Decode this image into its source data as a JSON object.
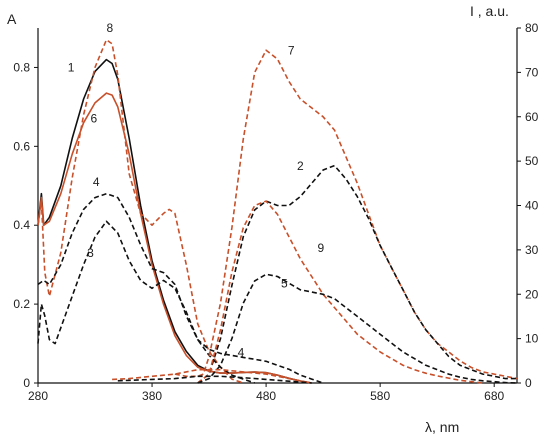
{
  "chart_data": {
    "type": "line",
    "xlabel": "λ, nm",
    "ylabel_left": "A",
    "ylabel_right": "I , a.u.",
    "xlim": [
      280,
      700
    ],
    "ylim_left": [
      0,
      0.9
    ],
    "ylim_right": [
      0,
      80
    ],
    "x_ticks": [
      280,
      380,
      480,
      580,
      680
    ],
    "y_ticks_left": [
      0,
      0.2,
      0.4,
      0.6,
      0.8
    ],
    "y_ticks_right": [
      0,
      10,
      20,
      30,
      40,
      50,
      60,
      70,
      80
    ],
    "grid": false,
    "legend": "none",
    "colors": {
      "black": "#111111",
      "red": "#c8502a"
    },
    "series": [
      {
        "label": "1",
        "axis": "left",
        "color": "black",
        "dash": "solid",
        "points": [
          [
            280,
            0.4
          ],
          [
            283,
            0.48
          ],
          [
            285,
            0.4
          ],
          [
            290,
            0.42
          ],
          [
            300,
            0.5
          ],
          [
            310,
            0.62
          ],
          [
            320,
            0.72
          ],
          [
            330,
            0.79
          ],
          [
            340,
            0.82
          ],
          [
            345,
            0.81
          ],
          [
            350,
            0.77
          ],
          [
            360,
            0.62
          ],
          [
            370,
            0.45
          ],
          [
            380,
            0.31
          ],
          [
            390,
            0.21
          ],
          [
            400,
            0.13
          ],
          [
            410,
            0.08
          ],
          [
            420,
            0.045
          ],
          [
            430,
            0.03
          ],
          [
            440,
            0.025
          ],
          [
            450,
            0.025
          ],
          [
            460,
            0.027
          ],
          [
            470,
            0.028
          ],
          [
            480,
            0.026
          ],
          [
            490,
            0.02
          ],
          [
            500,
            0.012
          ],
          [
            510,
            0.005
          ],
          [
            520,
            0.0
          ]
        ]
      },
      {
        "label": "6",
        "axis": "left",
        "color": "red",
        "dash": "solid",
        "points": [
          [
            280,
            0.4
          ],
          [
            283,
            0.47
          ],
          [
            285,
            0.4
          ],
          [
            290,
            0.41
          ],
          [
            300,
            0.48
          ],
          [
            310,
            0.58
          ],
          [
            320,
            0.66
          ],
          [
            330,
            0.71
          ],
          [
            340,
            0.735
          ],
          [
            345,
            0.73
          ],
          [
            350,
            0.7
          ],
          [
            360,
            0.58
          ],
          [
            370,
            0.43
          ],
          [
            380,
            0.3
          ],
          [
            390,
            0.2
          ],
          [
            400,
            0.12
          ],
          [
            410,
            0.07
          ],
          [
            420,
            0.04
          ],
          [
            430,
            0.03
          ],
          [
            440,
            0.025
          ],
          [
            450,
            0.025
          ],
          [
            460,
            0.027
          ],
          [
            470,
            0.028
          ],
          [
            480,
            0.026
          ],
          [
            490,
            0.02
          ],
          [
            500,
            0.012
          ],
          [
            510,
            0.005
          ],
          [
            520,
            0.0
          ]
        ]
      },
      {
        "label": "8",
        "axis": "left",
        "color": "red",
        "dash": "dashed",
        "points": [
          [
            280,
            0.4
          ],
          [
            283,
            0.46
          ],
          [
            286,
            0.28
          ],
          [
            290,
            0.22
          ],
          [
            300,
            0.33
          ],
          [
            310,
            0.52
          ],
          [
            320,
            0.68
          ],
          [
            330,
            0.8
          ],
          [
            340,
            0.87
          ],
          [
            345,
            0.86
          ],
          [
            350,
            0.78
          ],
          [
            360,
            0.53
          ],
          [
            370,
            0.43
          ],
          [
            380,
            0.4
          ],
          [
            390,
            0.43
          ],
          [
            395,
            0.44
          ],
          [
            400,
            0.43
          ],
          [
            410,
            0.3
          ],
          [
            420,
            0.15
          ],
          [
            430,
            0.08
          ],
          [
            440,
            0.04
          ],
          [
            450,
            0.01
          ],
          [
            460,
            0.0
          ]
        ]
      },
      {
        "label": "4",
        "axis": "left",
        "color": "black",
        "dash": "dashed",
        "points": [
          [
            280,
            0.25
          ],
          [
            285,
            0.26
          ],
          [
            290,
            0.25
          ],
          [
            300,
            0.3
          ],
          [
            310,
            0.38
          ],
          [
            320,
            0.44
          ],
          [
            330,
            0.47
          ],
          [
            340,
            0.48
          ],
          [
            350,
            0.47
          ],
          [
            360,
            0.42
          ],
          [
            370,
            0.35
          ],
          [
            380,
            0.29
          ],
          [
            390,
            0.28
          ],
          [
            400,
            0.25
          ],
          [
            410,
            0.17
          ],
          [
            420,
            0.11
          ],
          [
            430,
            0.085
          ],
          [
            440,
            0.075
          ],
          [
            450,
            0.07
          ],
          [
            460,
            0.065
          ],
          [
            470,
            0.06
          ],
          [
            480,
            0.055
          ],
          [
            490,
            0.045
          ],
          [
            500,
            0.035
          ],
          [
            510,
            0.02
          ],
          [
            520,
            0.01
          ],
          [
            530,
            0.0
          ]
        ]
      },
      {
        "label": "3",
        "axis": "left",
        "color": "black",
        "dash": "dashed",
        "points": [
          [
            280,
            0.1
          ],
          [
            283,
            0.2
          ],
          [
            286,
            0.17
          ],
          [
            290,
            0.11
          ],
          [
            295,
            0.1
          ],
          [
            300,
            0.14
          ],
          [
            310,
            0.22
          ],
          [
            320,
            0.3
          ],
          [
            330,
            0.37
          ],
          [
            340,
            0.41
          ],
          [
            350,
            0.38
          ],
          [
            360,
            0.31
          ],
          [
            370,
            0.26
          ],
          [
            380,
            0.24
          ],
          [
            390,
            0.26
          ],
          [
            400,
            0.24
          ],
          [
            410,
            0.18
          ],
          [
            420,
            0.11
          ],
          [
            430,
            0.07
          ],
          [
            440,
            0.04
          ],
          [
            450,
            0.02
          ],
          [
            460,
            0.01
          ],
          [
            470,
            0.0
          ]
        ]
      },
      {
        "label": "7",
        "axis": "right",
        "color": "red",
        "dash": "dashed",
        "points": [
          [
            400,
            2
          ],
          [
            410,
            1.5
          ],
          [
            420,
            1.5
          ],
          [
            425,
            2
          ],
          [
            430,
            6
          ],
          [
            440,
            18
          ],
          [
            450,
            35
          ],
          [
            460,
            55
          ],
          [
            470,
            70
          ],
          [
            480,
            75
          ],
          [
            490,
            73
          ],
          [
            500,
            68
          ],
          [
            510,
            64
          ],
          [
            520,
            62
          ],
          [
            530,
            60
          ],
          [
            540,
            57
          ],
          [
            550,
            51
          ],
          [
            560,
            45
          ],
          [
            570,
            38
          ],
          [
            580,
            31
          ],
          [
            590,
            26
          ],
          [
            600,
            21
          ],
          [
            610,
            16
          ],
          [
            620,
            12
          ],
          [
            630,
            9
          ],
          [
            640,
            7
          ],
          [
            650,
            5
          ],
          [
            660,
            3.5
          ],
          [
            670,
            2.5
          ],
          [
            680,
            2
          ],
          [
            690,
            1.5
          ],
          [
            700,
            1
          ]
        ]
      },
      {
        "label": "2",
        "axis": "right",
        "color": "black",
        "dash": "dashed",
        "points": [
          [
            420,
            0
          ],
          [
            430,
            2
          ],
          [
            440,
            10
          ],
          [
            450,
            22
          ],
          [
            460,
            33
          ],
          [
            470,
            39
          ],
          [
            480,
            41
          ],
          [
            490,
            40
          ],
          [
            500,
            40
          ],
          [
            510,
            42
          ],
          [
            520,
            45
          ],
          [
            530,
            48
          ],
          [
            540,
            49
          ],
          [
            550,
            46
          ],
          [
            560,
            42
          ],
          [
            570,
            37
          ],
          [
            580,
            31
          ],
          [
            590,
            26
          ],
          [
            600,
            21
          ],
          [
            610,
            16
          ],
          [
            620,
            12
          ],
          [
            630,
            9
          ],
          [
            640,
            6
          ],
          [
            650,
            4
          ],
          [
            660,
            3
          ],
          [
            670,
            2
          ],
          [
            680,
            1.5
          ],
          [
            690,
            1
          ],
          [
            700,
            1
          ]
        ]
      },
      {
        "label": "9",
        "axis": "right",
        "color": "red",
        "dash": "dashed",
        "points": [
          [
            420,
            0
          ],
          [
            430,
            2
          ],
          [
            440,
            12
          ],
          [
            450,
            25
          ],
          [
            460,
            35
          ],
          [
            470,
            40
          ],
          [
            480,
            41
          ],
          [
            490,
            38
          ],
          [
            500,
            33
          ],
          [
            510,
            28
          ],
          [
            520,
            24
          ],
          [
            530,
            20
          ],
          [
            540,
            17
          ],
          [
            550,
            14
          ],
          [
            560,
            11
          ],
          [
            570,
            9
          ],
          [
            580,
            7
          ],
          [
            590,
            5.5
          ],
          [
            600,
            4
          ],
          [
            610,
            3
          ],
          [
            620,
            2.2
          ],
          [
            630,
            1.6
          ],
          [
            640,
            1.1
          ],
          [
            650,
            0.6
          ],
          [
            660,
            0.3
          ],
          [
            670,
            0
          ]
        ]
      },
      {
        "label": "5",
        "axis": "right",
        "color": "black",
        "dash": "dashed",
        "points": [
          [
            420,
            0
          ],
          [
            430,
            1
          ],
          [
            440,
            4
          ],
          [
            450,
            10
          ],
          [
            460,
            18
          ],
          [
            470,
            23
          ],
          [
            480,
            24.5
          ],
          [
            490,
            24
          ],
          [
            500,
            22.5
          ],
          [
            510,
            21
          ],
          [
            520,
            20.5
          ],
          [
            530,
            20
          ],
          [
            540,
            19
          ],
          [
            550,
            17
          ],
          [
            560,
            15
          ],
          [
            570,
            13
          ],
          [
            580,
            11
          ],
          [
            590,
            9
          ],
          [
            600,
            7
          ],
          [
            610,
            5.5
          ],
          [
            620,
            4
          ],
          [
            630,
            3
          ],
          [
            640,
            2
          ],
          [
            650,
            1.3
          ],
          [
            660,
            0.8
          ],
          [
            670,
            0.5
          ],
          [
            680,
            0.3
          ],
          [
            690,
            0.1
          ],
          [
            700,
            0
          ]
        ]
      },
      {
        "label": "",
        "axis": "right",
        "color": "red",
        "dash": "dashed",
        "points": [
          [
            345,
            0.8
          ],
          [
            360,
            1
          ],
          [
            380,
            1.5
          ],
          [
            400,
            2
          ],
          [
            420,
            3
          ],
          [
            440,
            3
          ],
          [
            460,
            2.5
          ],
          [
            480,
            2
          ],
          [
            500,
            1
          ],
          [
            510,
            0.5
          ],
          [
            520,
            0
          ]
        ]
      },
      {
        "label": "",
        "axis": "right",
        "color": "black",
        "dash": "dashed",
        "points": [
          [
            350,
            0.5
          ],
          [
            380,
            0.8
          ],
          [
            400,
            1
          ],
          [
            420,
            1.5
          ],
          [
            440,
            1.5
          ],
          [
            460,
            1.2
          ],
          [
            480,
            0.8
          ],
          [
            500,
            0.4
          ],
          [
            520,
            0
          ]
        ]
      }
    ],
    "labels": [
      {
        "text": "8",
        "x": 343,
        "axis": "left",
        "y": 0.89
      },
      {
        "text": "1",
        "x": 309,
        "axis": "left",
        "y": 0.79
      },
      {
        "text": "6",
        "x": 329,
        "axis": "left",
        "y": 0.66
      },
      {
        "text": "4",
        "x": 331,
        "axis": "left",
        "y": 0.5
      },
      {
        "text": "3",
        "x": 326,
        "axis": "left",
        "y": 0.32
      },
      {
        "text": "7",
        "x": 502,
        "axis": "right",
        "y": 74
      },
      {
        "text": "2",
        "x": 510,
        "axis": "right",
        "y": 48
      },
      {
        "text": "9",
        "x": 528,
        "axis": "right",
        "y": 29.5
      },
      {
        "text": "5",
        "x": 496,
        "axis": "right",
        "y": 21.5
      },
      {
        "text": "4",
        "x": 458,
        "axis": "right",
        "y": 6
      }
    ]
  }
}
